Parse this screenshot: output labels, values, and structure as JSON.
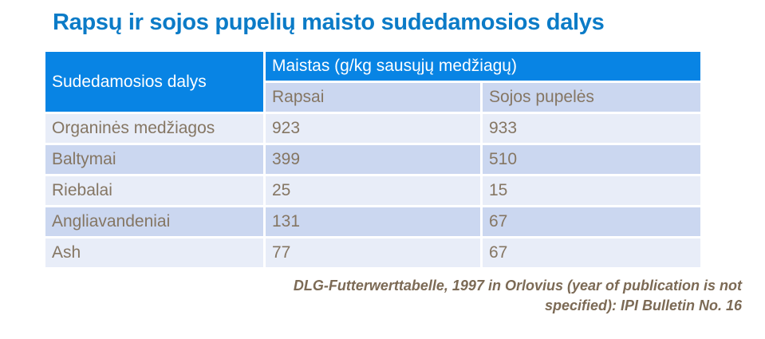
{
  "title": "Rapsų ir sojos pupelių maisto sudedamosios dalys",
  "table": {
    "corner_header": "Sudedamosios dalys",
    "group_header": "Maistas (g/kg sausųjų medžiagų)",
    "col_headers": [
      "Rapsai",
      "Sojos pupelės"
    ],
    "rows": [
      {
        "label": "Organinės medžiagos",
        "rapsai": "923",
        "sojos": "933"
      },
      {
        "label": "Baltymai",
        "rapsai": "399",
        "sojos": "510"
      },
      {
        "label": "Riebalai",
        "rapsai": "25",
        "sojos": "15"
      },
      {
        "label": "Angliavandeniai",
        "rapsai": "131",
        "sojos": "67"
      },
      {
        "label": "Ash",
        "rapsai": "77",
        "sojos": "67"
      }
    ]
  },
  "footer": {
    "line1": "DLG-Futterwerttabelle, 1997 in Orlovius (year of publication is not",
    "line2": "specified): IPI Bulletin No. 16"
  },
  "colors": {
    "title_blue": "#0b7bc7",
    "header_fill": "#0884e4",
    "header_text": "#ffffff",
    "row_light": "#e8edf8",
    "row_alt": "#cbd7f0",
    "cell_text": "#857663",
    "footer_text": "#7c6a55"
  }
}
